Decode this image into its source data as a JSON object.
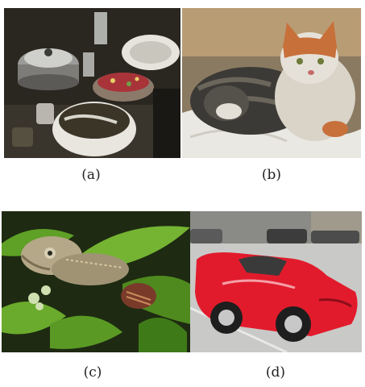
{
  "captions": {
    "a": "(a)",
    "b": "(b)",
    "c": "(c)",
    "d": "(d)"
  },
  "colors": {
    "background": "#ffffff",
    "car_red": "#e21b2c",
    "leaf_green": "#5fa026",
    "cat_orange": "#c8703a"
  },
  "panels": [
    {
      "id": "a",
      "subject": "kitchen-table-with-cookware"
    },
    {
      "id": "b",
      "subject": "sleeping-cats-on-bed"
    },
    {
      "id": "c",
      "subject": "chameleon-among-leaves"
    },
    {
      "id": "d",
      "subject": "red-sports-car-on-street"
    }
  ]
}
